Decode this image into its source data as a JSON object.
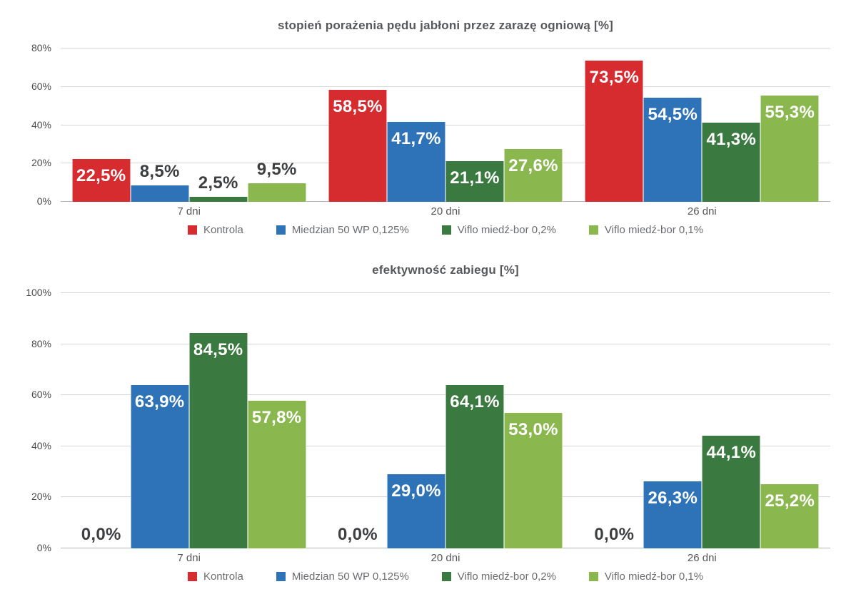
{
  "page": {
    "background": "#ffffff"
  },
  "chart_data": [
    {
      "type": "bar",
      "title": "stopień porażenia pędu jabłoni przez zarazę ogniową [%]",
      "categories": [
        "7 dni",
        "20 dni",
        "26 dni"
      ],
      "ylim": [
        0,
        80
      ],
      "yticks": [
        "0%",
        "20%",
        "40%",
        "60%",
        "80%"
      ],
      "grid": true,
      "legend_position": "bottom",
      "series": [
        {
          "name": "Kontrola",
          "color": "#d62b2f",
          "values": [
            22.5,
            58.5,
            73.5
          ],
          "labels": [
            "22,5%",
            "58,5%",
            "73,5%"
          ]
        },
        {
          "name": "Miedzian 50 WP 0,125%",
          "color": "#2e72b8",
          "values": [
            8.5,
            41.7,
            54.5
          ],
          "labels": [
            "8,5%",
            "41,7%",
            "54,5%"
          ]
        },
        {
          "name": "Viflo miedź-bor 0,2%",
          "color": "#3a7a40",
          "values": [
            2.5,
            21.1,
            41.3
          ],
          "labels": [
            "2,5%",
            "21,1%",
            "41,3%"
          ]
        },
        {
          "name": "Viflo miedź-bor 0,1%",
          "color": "#8ab84e",
          "values": [
            9.5,
            27.6,
            55.3
          ],
          "labels": [
            "9,5%",
            "27,6%",
            "55,3%"
          ]
        }
      ]
    },
    {
      "type": "bar",
      "title": "efektywność zabiegu [%]",
      "categories": [
        "7 dni",
        "20 dni",
        "26 dni"
      ],
      "ylim": [
        0,
        100
      ],
      "yticks": [
        "0%",
        "20%",
        "40%",
        "60%",
        "80%",
        "100%"
      ],
      "grid": true,
      "legend_position": "bottom",
      "series": [
        {
          "name": "Kontrola",
          "color": "#d62b2f",
          "values": [
            0,
            0,
            0
          ],
          "labels": [
            "0,0%",
            "0,0%",
            "0,0%"
          ]
        },
        {
          "name": "Miedzian 50 WP 0,125%",
          "color": "#2e72b8",
          "values": [
            63.9,
            29.0,
            26.3
          ],
          "labels": [
            "63,9%",
            "29,0%",
            "26,3%"
          ]
        },
        {
          "name": "Viflo miedź-bor 0,2%",
          "color": "#3a7a40",
          "values": [
            84.5,
            64.1,
            44.1
          ],
          "labels": [
            "84,5%",
            "64,1%",
            "44,1%"
          ]
        },
        {
          "name": "Viflo miedź-bor 0,1%",
          "color": "#8ab84e",
          "values": [
            57.8,
            53.0,
            25.2
          ],
          "labels": [
            "57,8%",
            "53,0%",
            "25,2%"
          ]
        }
      ]
    }
  ]
}
